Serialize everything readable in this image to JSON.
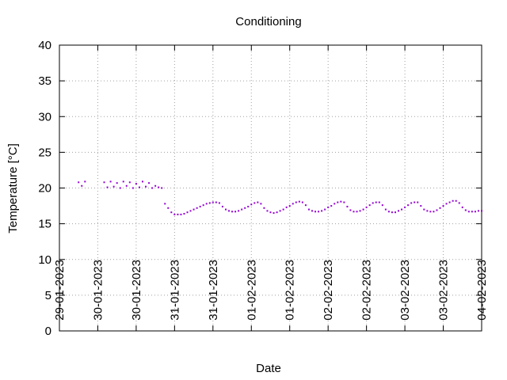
{
  "chart_data": {
    "type": "scatter",
    "title": "Conditioning",
    "xlabel": "Date",
    "ylabel": "Temperature [°C]",
    "xlim": [
      0,
      132
    ],
    "ylim": [
      0,
      40
    ],
    "xticks": [
      {
        "value": 0,
        "label": "29-01-2023"
      },
      {
        "value": 12,
        "label": "30-01-2023"
      },
      {
        "value": 24,
        "label": "30-01-2023"
      },
      {
        "value": 36,
        "label": "31-01-2023"
      },
      {
        "value": 48,
        "label": "31-01-2023"
      },
      {
        "value": 60,
        "label": "01-02-2023"
      },
      {
        "value": 72,
        "label": "01-02-2023"
      },
      {
        "value": 84,
        "label": "02-02-2023"
      },
      {
        "value": 96,
        "label": "02-02-2023"
      },
      {
        "value": 108,
        "label": "03-02-2023"
      },
      {
        "value": 120,
        "label": "03-02-2023"
      },
      {
        "value": 132,
        "label": "04-02-2023"
      }
    ],
    "yticks": [
      0,
      5,
      10,
      15,
      20,
      25,
      30,
      35,
      40
    ],
    "grid": true,
    "series": [
      {
        "color": "#9400d3",
        "x": [
          6,
          7,
          8,
          14,
          15,
          16,
          17,
          18,
          19,
          20,
          21,
          22,
          23,
          24,
          25,
          26,
          27,
          28,
          29,
          30,
          31,
          32,
          33,
          34,
          35,
          36,
          37,
          38,
          39,
          40,
          41,
          42,
          43,
          44,
          45,
          46,
          47,
          48,
          49,
          50,
          51,
          52,
          53,
          54,
          55,
          56,
          57,
          58,
          59,
          60,
          61,
          62,
          63,
          64,
          65,
          66,
          67,
          68,
          69,
          70,
          71,
          72,
          73,
          74,
          75,
          76,
          77,
          78,
          79,
          80,
          81,
          82,
          83,
          84,
          85,
          86,
          87,
          88,
          89,
          90,
          91,
          92,
          93,
          94,
          95,
          96,
          97,
          98,
          99,
          100,
          101,
          102,
          103,
          104,
          105,
          106,
          107,
          108,
          109,
          110,
          111,
          112,
          113,
          114,
          115,
          116,
          117,
          118,
          119,
          120,
          121,
          122,
          123,
          124,
          125,
          126,
          127,
          128,
          129,
          130,
          131,
          132
        ],
        "values": [
          20.8,
          20.3,
          20.9,
          20.8,
          20.1,
          20.9,
          20.2,
          20.7,
          20.0,
          20.9,
          20.3,
          20.8,
          20.0,
          20.6,
          20.1,
          20.9,
          20.2,
          20.7,
          20.0,
          20.3,
          20.1,
          20.0,
          17.8,
          17.2,
          16.6,
          16.3,
          16.3,
          16.3,
          16.4,
          16.6,
          16.8,
          17.0,
          17.2,
          17.4,
          17.6,
          17.8,
          17.9,
          18.0,
          18.0,
          17.9,
          17.4,
          17.0,
          16.8,
          16.7,
          16.7,
          16.8,
          17.0,
          17.2,
          17.4,
          17.7,
          17.9,
          18.0,
          17.8,
          17.2,
          16.8,
          16.6,
          16.5,
          16.6,
          16.8,
          17.0,
          17.3,
          17.5,
          17.8,
          18.0,
          18.1,
          18.0,
          17.6,
          17.0,
          16.8,
          16.7,
          16.7,
          16.8,
          17.0,
          17.3,
          17.5,
          17.8,
          18.0,
          18.1,
          18.0,
          17.4,
          16.9,
          16.7,
          16.7,
          16.8,
          17.0,
          17.3,
          17.6,
          17.9,
          18.0,
          18.0,
          17.6,
          17.0,
          16.7,
          16.6,
          16.6,
          16.8,
          17.0,
          17.3,
          17.6,
          17.9,
          18.0,
          18.0,
          17.5,
          17.0,
          16.8,
          16.7,
          16.7,
          16.9,
          17.2,
          17.5,
          17.8,
          18.0,
          18.2,
          18.2,
          17.9,
          17.3,
          16.9,
          16.7,
          16.7,
          16.7,
          16.8,
          16.8
        ]
      }
    ]
  }
}
